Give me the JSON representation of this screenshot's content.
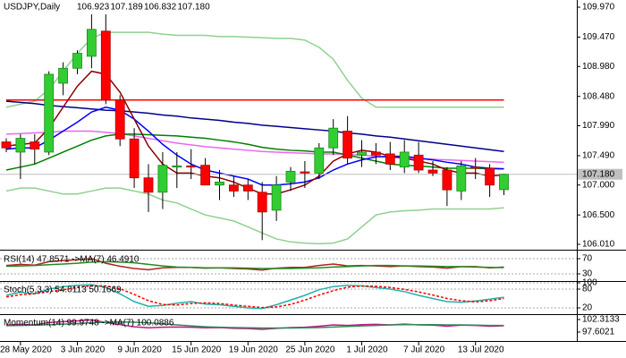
{
  "chart_data": [
    {
      "type": "candlestick",
      "title": "USDJPY,Daily",
      "header_values": [
        {
          "value": 106.923,
          "label": "106.923"
        },
        {
          "value": 107.189,
          "label": "107.189"
        },
        {
          "value": 106.832,
          "label": "106.832"
        },
        {
          "value": 107.18,
          "label": "107.180"
        }
      ],
      "categories": [
        null,
        "28 May 2020",
        null,
        null,
        null,
        "3 Jun 2020",
        null,
        null,
        null,
        "9 Jun 2020",
        null,
        null,
        null,
        "15 Jun 2020",
        null,
        null,
        null,
        "19 Jun 2020",
        null,
        null,
        null,
        "25 Jun 2020",
        null,
        null,
        null,
        "1 Jul 2020",
        null,
        null,
        null,
        "7 Jul 2020",
        null,
        null,
        null,
        "13 Jul 2020",
        null,
        null
      ],
      "open": [
        107.72,
        107.55,
        107.72,
        107.55,
        108.7,
        108.95,
        109.15,
        109.57,
        108.42,
        107.77,
        107.12,
        106.88,
        107.3,
        107.32,
        107.33,
        107.0,
        107.0,
        107.0,
        106.88,
        106.58,
        107.05,
        107.22,
        107.2,
        107.62,
        107.9,
        107.5,
        107.55,
        107.52,
        107.3,
        107.5,
        107.25,
        107.25,
        106.9,
        107.3,
        107.28,
        106.923
      ],
      "high": [
        107.78,
        107.85,
        107.85,
        108.9,
        109.05,
        109.25,
        109.85,
        109.85,
        108.5,
        107.95,
        107.35,
        107.55,
        107.55,
        107.6,
        107.45,
        107.25,
        107.15,
        107.1,
        107.05,
        107.15,
        107.3,
        107.4,
        107.7,
        108.1,
        108.15,
        107.75,
        107.7,
        107.72,
        107.75,
        107.72,
        107.4,
        107.3,
        107.4,
        107.45,
        107.35,
        107.189
      ],
      "low": [
        107.55,
        107.1,
        107.35,
        107.5,
        108.5,
        108.85,
        108.95,
        108.35,
        107.65,
        106.95,
        106.55,
        106.6,
        106.95,
        107.1,
        107.0,
        106.75,
        106.8,
        106.75,
        106.08,
        106.4,
        106.9,
        106.95,
        107.1,
        107.5,
        107.35,
        107.3,
        107.35,
        107.25,
        107.2,
        107.2,
        107.15,
        106.65,
        106.75,
        107.1,
        106.8,
        106.832
      ],
      "close": [
        107.62,
        107.78,
        107.6,
        108.85,
        108.95,
        109.2,
        109.6,
        108.42,
        107.77,
        107.12,
        106.88,
        107.33,
        107.32,
        107.3,
        107.0,
        107.05,
        106.9,
        106.9,
        106.55,
        107.0,
        107.23,
        107.2,
        107.62,
        107.95,
        107.45,
        107.55,
        107.5,
        107.35,
        107.55,
        107.25,
        107.2,
        106.92,
        107.32,
        107.28,
        107.0,
        107.18
      ],
      "up_color": "#32cd32",
      "down_color": "#ff0000",
      "ylim": [
        105.935,
        110.09
      ],
      "yticks": [
        {
          "value": 109.97,
          "label": "109.970"
        },
        {
          "value": 109.47,
          "label": "109.470"
        },
        {
          "value": 108.98,
          "label": "108.980"
        },
        {
          "value": 108.48,
          "label": "108.480"
        },
        {
          "value": 107.99,
          "label": "107.990"
        },
        {
          "value": 107.49,
          "label": "107.490"
        },
        {
          "value": 107.0,
          "label": "107.000"
        },
        {
          "value": 106.5,
          "label": "106.500"
        },
        {
          "value": 106.01,
          "label": "106.010"
        }
      ],
      "last_price": {
        "value": 107.18,
        "label": "107.180"
      },
      "overlays": [
        {
          "color": "#8fd18f",
          "values": [
            108.3,
            108.35,
            108.4,
            108.6,
            108.9,
            109.2,
            109.45,
            109.55,
            109.55,
            109.55,
            109.55,
            109.52,
            109.5,
            109.5,
            109.5,
            109.48,
            109.48,
            109.47,
            109.46,
            109.45,
            109.45,
            109.42,
            109.3,
            109.1,
            108.75,
            108.45,
            108.3,
            108.3,
            108.3,
            108.3,
            108.3,
            108.3,
            108.3,
            108.3,
            108.3,
            108.3
          ]
        },
        {
          "color": "#8fd18f",
          "values": [
            106.9,
            106.95,
            106.95,
            106.9,
            106.85,
            106.85,
            106.9,
            106.95,
            106.95,
            106.9,
            106.85,
            106.75,
            106.7,
            106.6,
            106.5,
            106.45,
            106.4,
            106.3,
            106.2,
            106.1,
            106.05,
            106.03,
            106.02,
            106.03,
            106.1,
            106.3,
            106.5,
            106.55,
            106.57,
            106.58,
            106.6,
            106.6,
            106.6,
            106.6,
            106.6,
            106.62
          ]
        },
        {
          "color": "#ff0000",
          "values": [
            108.42,
            108.42,
            108.42,
            108.42,
            108.42,
            108.42,
            108.42,
            108.42,
            108.42,
            108.42,
            108.42,
            108.42,
            108.42,
            108.42,
            108.42,
            108.42,
            108.42,
            108.42,
            108.42,
            108.42,
            108.42,
            108.42,
            108.42,
            108.42,
            108.42,
            108.42,
            108.42,
            108.42,
            108.42,
            108.42,
            108.42,
            108.42,
            108.42,
            108.42,
            108.42,
            108.42
          ]
        },
        {
          "color": "#00008b",
          "values": [
            108.4,
            108.38,
            108.36,
            108.33,
            108.31,
            108.29,
            108.27,
            108.25,
            108.24,
            108.22,
            108.2,
            108.17,
            108.15,
            108.12,
            108.1,
            108.08,
            108.05,
            108.03,
            108.0,
            107.98,
            107.96,
            107.94,
            107.92,
            107.9,
            107.87,
            107.85,
            107.82,
            107.8,
            107.77,
            107.74,
            107.71,
            107.68,
            107.65,
            107.62,
            107.59,
            107.56
          ]
        },
        {
          "color": "#ee66ee",
          "values": [
            107.85,
            107.86,
            107.87,
            107.88,
            107.9,
            107.9,
            107.9,
            107.88,
            107.86,
            107.82,
            107.78,
            107.74,
            107.7,
            107.67,
            107.64,
            107.62,
            107.6,
            107.58,
            107.56,
            107.55,
            107.54,
            107.53,
            107.52,
            107.52,
            107.51,
            107.5,
            107.48,
            107.46,
            107.45,
            107.44,
            107.43,
            107.42,
            107.41,
            107.4,
            107.39,
            107.38
          ]
        },
        {
          "color": "#008000",
          "values": [
            107.25,
            107.3,
            107.35,
            107.45,
            107.55,
            107.65,
            107.75,
            107.82,
            107.85,
            107.85,
            107.84,
            107.83,
            107.82,
            107.8,
            107.78,
            107.75,
            107.72,
            107.68,
            107.63,
            107.6,
            107.58,
            107.57,
            107.55,
            107.55,
            107.5,
            107.45,
            107.4,
            107.35,
            107.33,
            107.32,
            107.3,
            107.28,
            107.28,
            107.28,
            107.27,
            107.27
          ]
        },
        {
          "color": "#0000ff",
          "values": [
            107.6,
            107.62,
            107.62,
            107.75,
            107.9,
            108.05,
            108.22,
            108.3,
            108.25,
            108.1,
            107.9,
            107.68,
            107.5,
            107.35,
            107.25,
            107.2,
            107.15,
            107.1,
            107.0,
            107.0,
            107.02,
            107.05,
            107.12,
            107.25,
            107.35,
            107.42,
            107.47,
            107.48,
            107.48,
            107.45,
            107.42,
            107.38,
            107.35,
            107.3,
            107.28,
            107.27
          ]
        },
        {
          "color": "#8b0000",
          "values": [
            107.65,
            107.68,
            107.7,
            107.95,
            108.3,
            108.65,
            108.9,
            108.85,
            108.55,
            108.1,
            107.65,
            107.35,
            107.2,
            107.2,
            107.15,
            107.12,
            107.05,
            106.95,
            106.85,
            106.85,
            106.92,
            107.0,
            107.15,
            107.4,
            107.52,
            107.58,
            107.55,
            107.48,
            107.45,
            107.4,
            107.35,
            107.25,
            107.2,
            107.2,
            107.15,
            107.17
          ]
        }
      ]
    },
    {
      "type": "line",
      "title": "RSI(14) 47.8571 ->MA(7) 46.4910",
      "ylim": [
        13.5,
        86.5
      ],
      "yticks": [
        70,
        30
      ],
      "grid": true,
      "series": [
        {
          "color": "#b22222",
          "values": [
            52,
            55,
            53,
            62,
            65,
            67,
            70,
            58,
            50,
            44,
            41,
            46,
            47,
            47,
            45,
            46,
            44,
            43,
            40,
            45,
            47,
            47,
            52,
            56,
            51,
            52,
            51,
            49,
            51,
            49,
            48,
            45,
            49,
            49,
            46,
            47.8571
          ]
        },
        {
          "color": "#228b22",
          "values": [
            50,
            51,
            52,
            54,
            56,
            58,
            61,
            62,
            61,
            59,
            55,
            51,
            48,
            47,
            46,
            46,
            46,
            45,
            44,
            44,
            44,
            45,
            46,
            48,
            49,
            51,
            52,
            52,
            51,
            51,
            50,
            49,
            49,
            48,
            47,
            46.491
          ]
        }
      ]
    },
    {
      "type": "line",
      "title": "Stoch(5,3,3) 54.0113 50.1669",
      "ylim": [
        2.9,
        100
      ],
      "yticks": [
        100,
        80,
        20
      ],
      "grid": true,
      "series": [
        {
          "color": "#20b2aa",
          "values": [
            60,
            70,
            65,
            80,
            88,
            92,
            94,
            85,
            65,
            40,
            25,
            28,
            35,
            40,
            32,
            30,
            25,
            20,
            18,
            30,
            45,
            60,
            78,
            88,
            92,
            90,
            85,
            80,
            72,
            60,
            50,
            40,
            38,
            42,
            48,
            54.0113
          ]
        },
        {
          "color": "#ff0000",
          "dash": true,
          "values": [
            55,
            62,
            65,
            72,
            78,
            85,
            91,
            90,
            81,
            63,
            43,
            31,
            29,
            34,
            36,
            34,
            29,
            25,
            21,
            23,
            31,
            45,
            61,
            75,
            86,
            90,
            89,
            85,
            79,
            71,
            61,
            50,
            43,
            39,
            43,
            50.1669
          ]
        }
      ]
    },
    {
      "type": "line",
      "title": "Momentum(14) 99.9748 ->MA(7) 100.0886",
      "ylim": [
        94.58,
        103.66
      ],
      "yticks": [
        102.3133,
        97.6021
      ],
      "grid": false,
      "series": [
        {
          "color": "#c71585",
          "values": [
            100.2,
            100.5,
            100.3,
            101.2,
            101.5,
            101.8,
            102.2,
            101.2,
            100.4,
            99.6,
            99.2,
            99.4,
            99.5,
            99.4,
            99.2,
            99.3,
            99.0,
            98.9,
            98.6,
            99.0,
            99.3,
            99.4,
            99.8,
            100.3,
            100.1,
            100.4,
            100.5,
            100.3,
            100.6,
            100.3,
            100.2,
            99.8,
            100.2,
            100.1,
            99.8,
            99.9748
          ]
        },
        {
          "color": "#2e8b57",
          "values": [
            100.0,
            100.1,
            100.2,
            100.4,
            100.6,
            100.8,
            101.1,
            101.3,
            101.4,
            101.3,
            101.1,
            100.7,
            100.3,
            99.9,
            99.6,
            99.4,
            99.3,
            99.2,
            99.1,
            99.1,
            99.1,
            99.2,
            99.3,
            99.5,
            99.7,
            99.9,
            100.1,
            100.3,
            100.4,
            100.4,
            100.4,
            100.3,
            100.3,
            100.2,
            100.1,
            100.0886
          ]
        }
      ]
    }
  ]
}
